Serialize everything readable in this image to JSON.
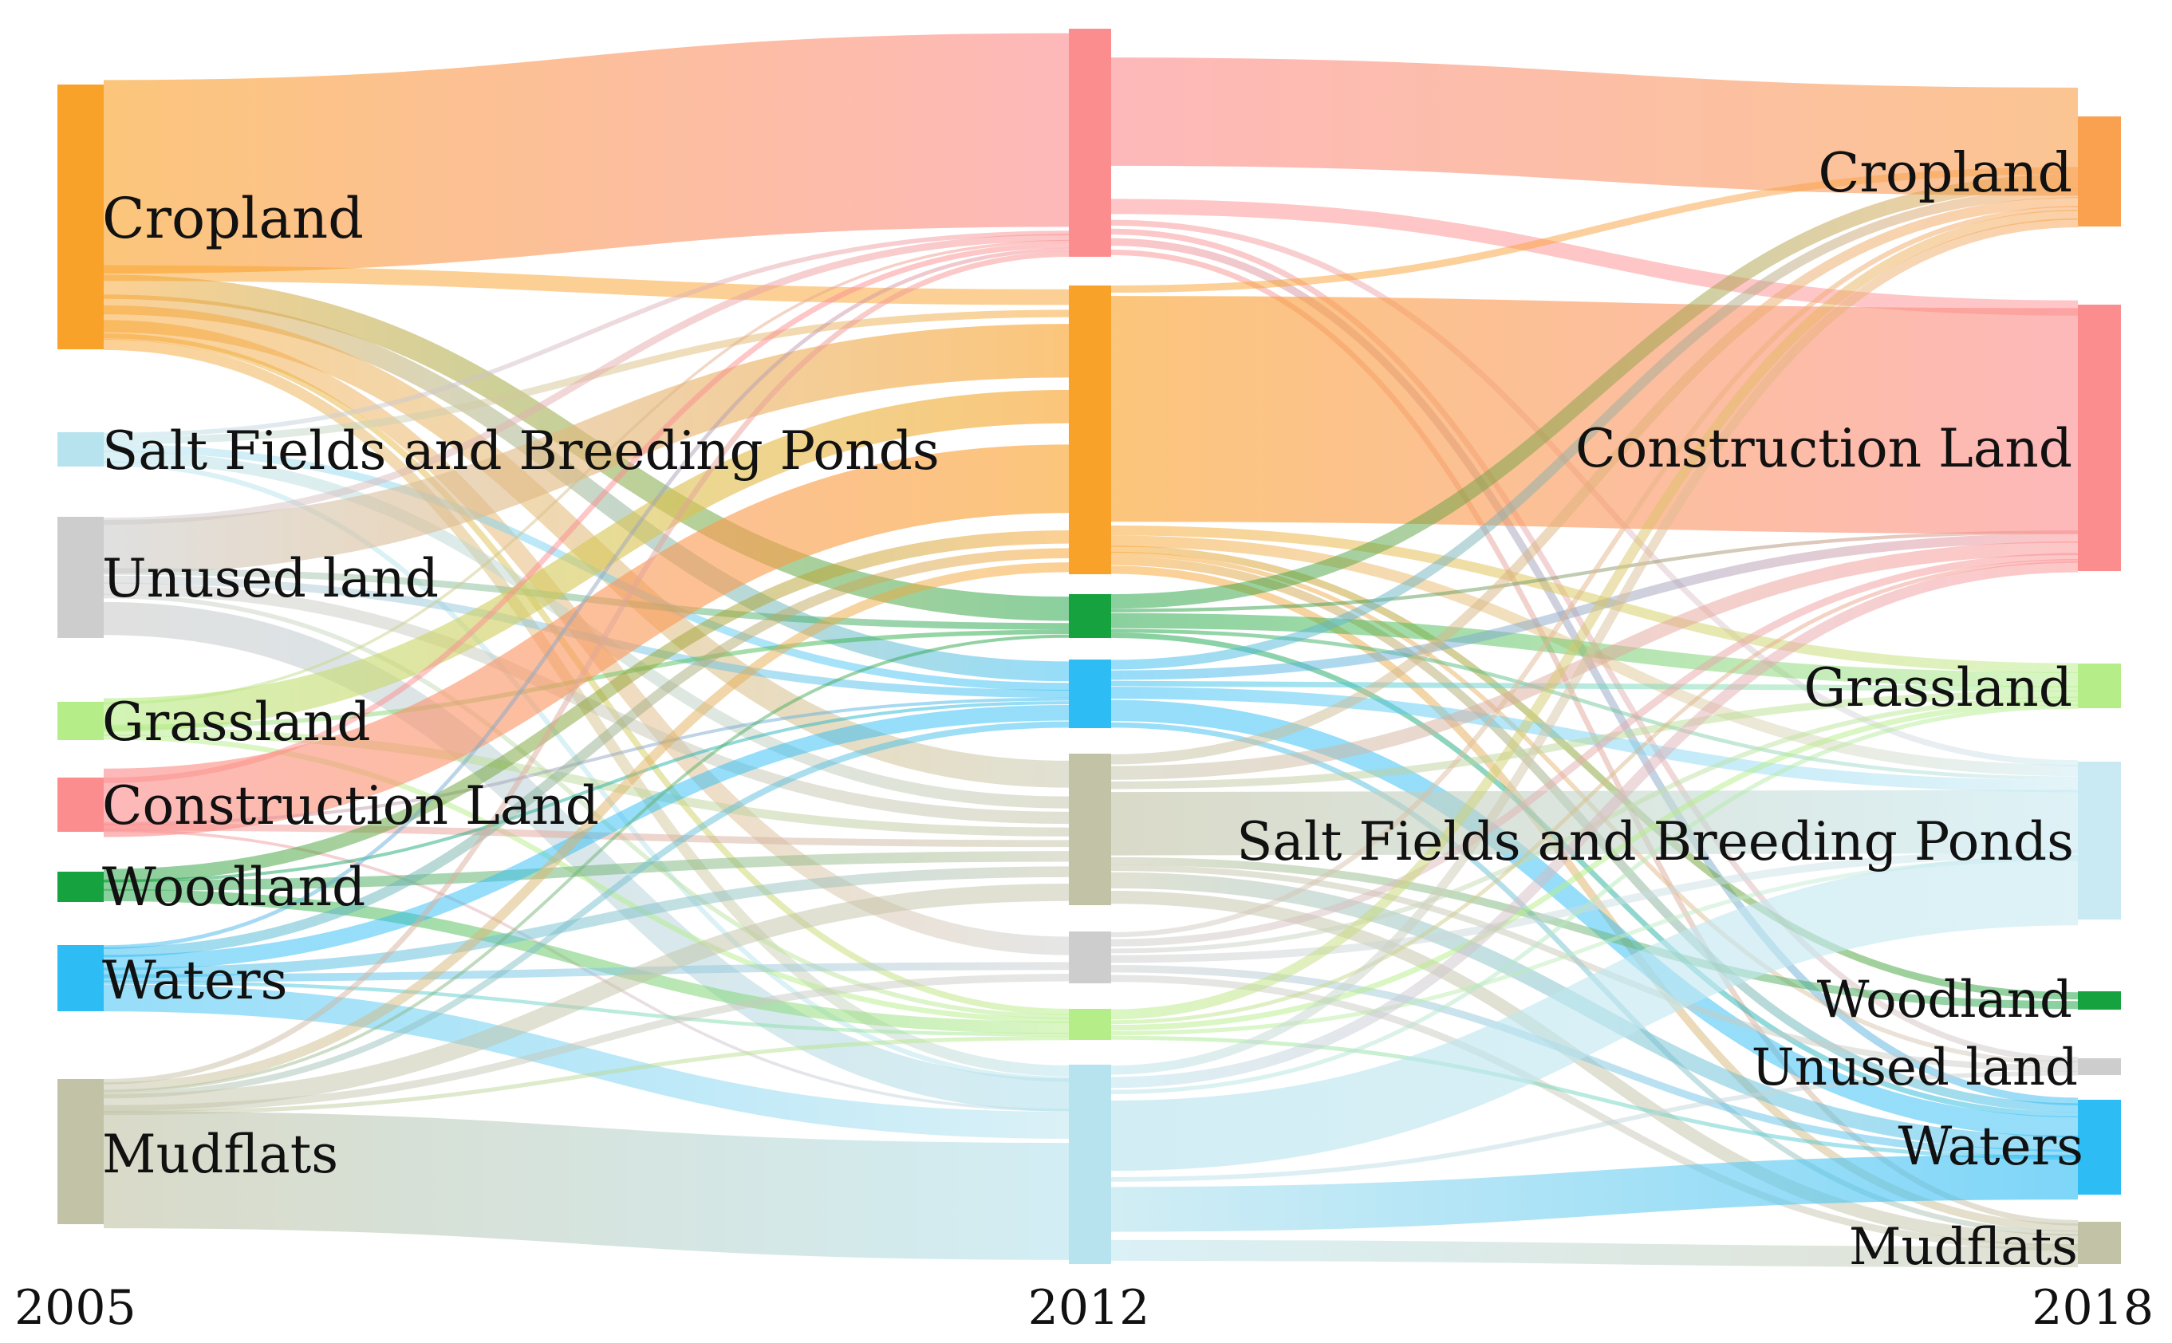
{
  "columns": [
    {
      "year": "2005",
      "nodes": [
        {
          "key": "cropland",
          "label": "Cropland",
          "color": "#F9A22A"
        },
        {
          "key": "salt",
          "label": "Salt Fields and Breeding Ponds",
          "color": "#B6E3EE"
        },
        {
          "key": "unused",
          "label": "Unused land",
          "color": "#CDCDCD"
        },
        {
          "key": "grass",
          "label": "Grassland",
          "color": "#B5EE88"
        },
        {
          "key": "construction",
          "label": "Construction Land",
          "color": "#FC8D8F"
        },
        {
          "key": "wood",
          "label": "Woodland",
          "color": "#16A23E"
        },
        {
          "key": "waters",
          "label": "Waters",
          "color": "#2EBCF4"
        },
        {
          "key": "mud",
          "label": "Mudflats",
          "color": "#C2C3A6"
        }
      ]
    },
    {
      "year": "2012",
      "nodes": [
        {
          "key": "construction",
          "label": "",
          "color": "#FC8D8F"
        },
        {
          "key": "cropland",
          "label": "",
          "color": "#F9A22A"
        },
        {
          "key": "wood",
          "label": "",
          "color": "#16A23E"
        },
        {
          "key": "waters",
          "label": "",
          "color": "#2EBCF4"
        },
        {
          "key": "mud",
          "label": "",
          "color": "#C2C3A6"
        },
        {
          "key": "unused",
          "label": "",
          "color": "#CDCDCD"
        },
        {
          "key": "grass",
          "label": "",
          "color": "#B5EE88"
        },
        {
          "key": "salt",
          "label": "",
          "color": "#B6E3EE"
        }
      ]
    },
    {
      "year": "2018",
      "nodes": [
        {
          "key": "cropland",
          "label": "Cropland",
          "color": "#F9A14F"
        },
        {
          "key": "construction",
          "label": "Construction Land",
          "color": "#FC8D8F"
        },
        {
          "key": "grass",
          "label": "Grassland",
          "color": "#B5EE88"
        },
        {
          "key": "salt",
          "label": "Salt Fields and Breeding Ponds",
          "color": "#C9EAF2"
        },
        {
          "key": "wood",
          "label": "Woodland",
          "color": "#16A23E"
        },
        {
          "key": "unused",
          "label": "Unused land",
          "color": "#CDCDCD"
        },
        {
          "key": "waters",
          "label": "Waters",
          "color": "#2EBCF4"
        },
        {
          "key": "mud",
          "label": "Mudflats",
          "color": "#C2C3A6"
        }
      ]
    }
  ]
}
